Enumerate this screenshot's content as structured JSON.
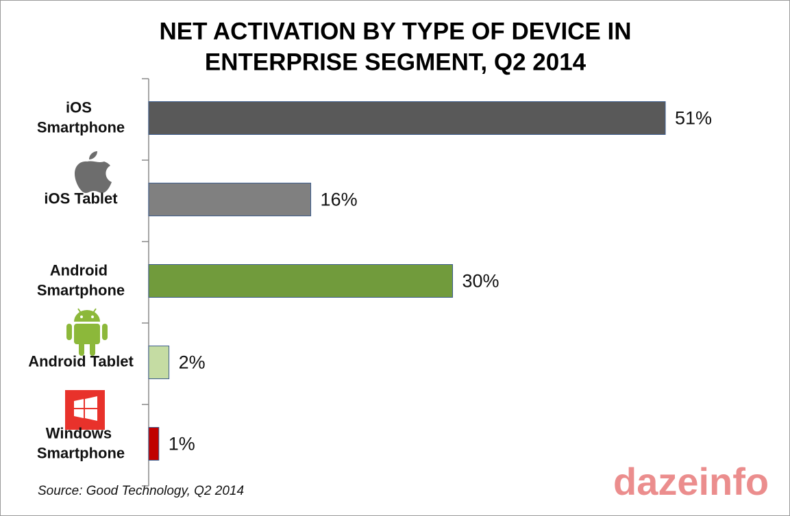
{
  "chart_data": {
    "type": "hbar",
    "title": [
      "NET ACTIVATION BY TYPE OF DEVICE IN",
      "ENTERPRISE SEGMENT, Q2 2014"
    ],
    "categories": [
      "iOS Smartphone",
      "iOS Tablet",
      "Android Smartphone",
      "Android Tablet",
      "Windows Smartphone"
    ],
    "values": [
      51,
      16,
      30,
      2,
      1
    ],
    "value_labels": [
      "51%",
      "16%",
      "30%",
      "2%",
      "1%"
    ],
    "colors": [
      "#595959",
      "#808080",
      "#719b3c",
      "#c5dca3",
      "#c00000"
    ],
    "source": "Source: Good Technology, Q2 2014",
    "watermark": "dazeinfo"
  }
}
